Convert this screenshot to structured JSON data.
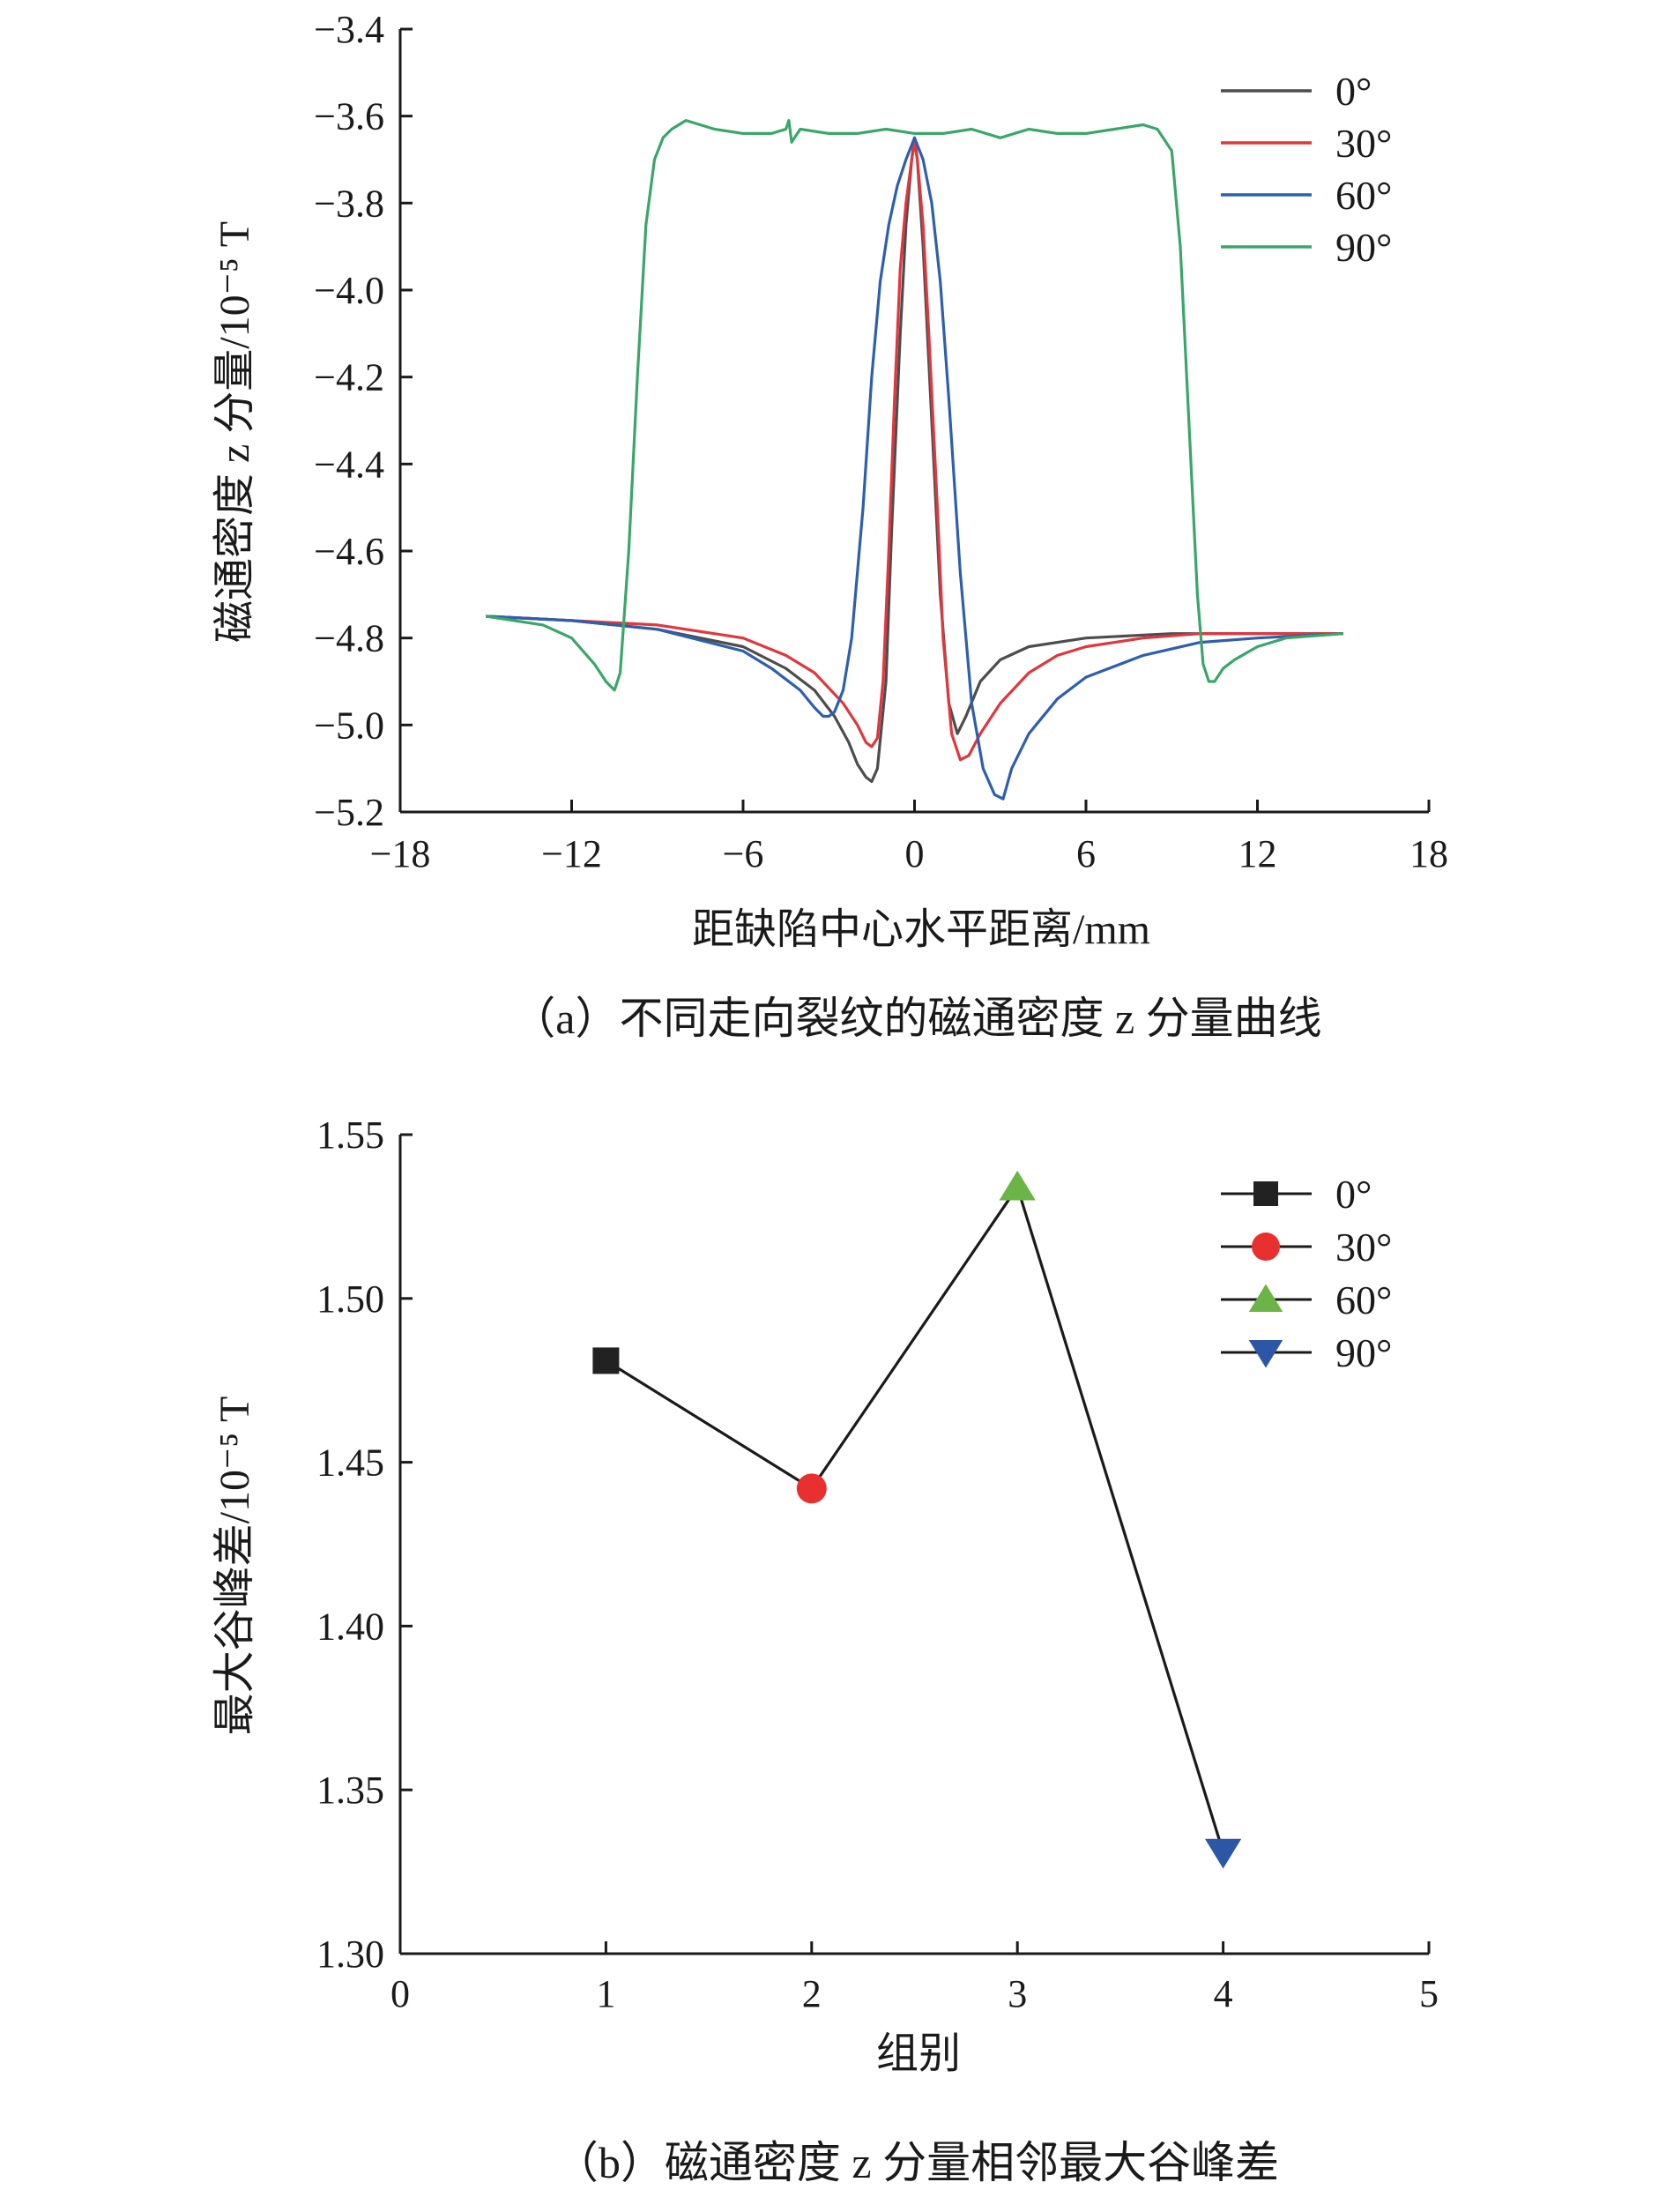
{
  "chart_data": [
    {
      "type": "line",
      "caption": "（a）不同走向裂纹的磁通密度 z 分量曲线",
      "xlabel": "距缺陷中心水平距离/mm",
      "ylabel": "磁通密度 z 分量/10⁻⁵ T",
      "xlim": [
        -18,
        18
      ],
      "ylim": [
        -5.2,
        -3.4
      ],
      "xticks": [
        "−18",
        "−12",
        "−6",
        "0",
        "6",
        "12",
        "18"
      ],
      "yticks": [
        "−3.4",
        "−3.6",
        "−3.8",
        "−4.0",
        "−4.2",
        "−4.4",
        "−4.6",
        "−4.8",
        "−5.0",
        "−5.2"
      ],
      "grid": false,
      "legend_position": "top-right",
      "series": [
        {
          "name": "0°",
          "color": "#4d4d4d",
          "x": [
            -15,
            -12,
            -9,
            -6,
            -4.5,
            -3.5,
            -2.8,
            -2.3,
            -2.0,
            -1.7,
            -1.5,
            -1.3,
            -1.0,
            -0.8,
            -0.5,
            -0.3,
            -0.1,
            0,
            0.1,
            0.3,
            0.6,
            0.9,
            1.2,
            1.5,
            1.8,
            2.3,
            3.0,
            4.0,
            6.0,
            9.0,
            12.0,
            15.0
          ],
          "y": [
            -4.75,
            -4.76,
            -4.78,
            -4.82,
            -4.87,
            -4.92,
            -4.98,
            -5.04,
            -5.09,
            -5.12,
            -5.13,
            -5.1,
            -4.9,
            -4.55,
            -4.1,
            -3.85,
            -3.7,
            -3.65,
            -3.7,
            -3.9,
            -4.3,
            -4.7,
            -4.95,
            -5.02,
            -4.98,
            -4.9,
            -4.85,
            -4.82,
            -4.8,
            -4.79,
            -4.79,
            -4.79
          ]
        },
        {
          "name": "30°",
          "color": "#e0373e",
          "x": [
            -15,
            -12,
            -9,
            -6,
            -4.5,
            -3.5,
            -2.5,
            -2.0,
            -1.7,
            -1.5,
            -1.3,
            -1.1,
            -0.9,
            -0.7,
            -0.5,
            -0.3,
            -0.1,
            0,
            0.1,
            0.3,
            0.5,
            0.8,
            1.0,
            1.3,
            1.6,
            1.9,
            2.3,
            3.0,
            4.0,
            5.0,
            6.0,
            8.0,
            10.0,
            12.0,
            15.0
          ],
          "y": [
            -4.75,
            -4.76,
            -4.77,
            -4.8,
            -4.84,
            -4.88,
            -4.95,
            -5.0,
            -5.04,
            -5.05,
            -5.03,
            -4.9,
            -4.6,
            -4.25,
            -3.95,
            -3.8,
            -3.7,
            -3.66,
            -3.7,
            -3.85,
            -4.1,
            -4.5,
            -4.8,
            -5.02,
            -5.08,
            -5.07,
            -5.02,
            -4.95,
            -4.88,
            -4.84,
            -4.82,
            -4.8,
            -4.79,
            -4.79,
            -4.79
          ]
        },
        {
          "name": "60°",
          "color": "#2e5fae",
          "x": [
            -15,
            -12,
            -9,
            -6,
            -5,
            -4,
            -3.5,
            -3.2,
            -3.0,
            -2.8,
            -2.5,
            -2.2,
            -1.8,
            -1.5,
            -1.2,
            -0.9,
            -0.6,
            -0.3,
            0,
            0.3,
            0.6,
            0.9,
            1.2,
            1.6,
            2.0,
            2.4,
            2.8,
            3.1,
            3.4,
            4.0,
            5.0,
            6.0,
            8.0,
            10.0,
            12.0,
            15.0
          ],
          "y": [
            -4.75,
            -4.76,
            -4.78,
            -4.83,
            -4.87,
            -4.92,
            -4.96,
            -4.98,
            -4.98,
            -4.97,
            -4.92,
            -4.8,
            -4.5,
            -4.2,
            -3.98,
            -3.85,
            -3.76,
            -3.7,
            -3.65,
            -3.7,
            -3.8,
            -3.98,
            -4.25,
            -4.65,
            -4.95,
            -5.1,
            -5.16,
            -5.17,
            -5.1,
            -5.02,
            -4.94,
            -4.89,
            -4.84,
            -4.81,
            -4.8,
            -4.79
          ]
        },
        {
          "name": "90°",
          "color": "#3aa66b",
          "x": [
            -15,
            -13,
            -12,
            -11.2,
            -10.8,
            -10.5,
            -10.3,
            -10.0,
            -9.7,
            -9.4,
            -9.1,
            -8.8,
            -8.5,
            -8.0,
            -7.0,
            -6.0,
            -5.0,
            -4.5,
            -4.4,
            -4.3,
            -4.0,
            -3.0,
            -2.0,
            -1.0,
            0,
            1.0,
            2.0,
            3.0,
            4.0,
            5.0,
            6.0,
            7.0,
            8.0,
            8.5,
            9.0,
            9.3,
            9.6,
            9.9,
            10.1,
            10.3,
            10.5,
            10.8,
            11.2,
            12.0,
            13.0,
            15.0
          ],
          "y": [
            -4.75,
            -4.77,
            -4.8,
            -4.86,
            -4.9,
            -4.92,
            -4.88,
            -4.6,
            -4.2,
            -3.85,
            -3.7,
            -3.65,
            -3.63,
            -3.61,
            -3.63,
            -3.64,
            -3.64,
            -3.63,
            -3.61,
            -3.66,
            -3.63,
            -3.64,
            -3.64,
            -3.63,
            -3.64,
            -3.64,
            -3.63,
            -3.65,
            -3.63,
            -3.64,
            -3.64,
            -3.63,
            -3.62,
            -3.63,
            -3.68,
            -3.9,
            -4.3,
            -4.7,
            -4.86,
            -4.9,
            -4.9,
            -4.87,
            -4.85,
            -4.82,
            -4.8,
            -4.79
          ]
        }
      ]
    },
    {
      "type": "line",
      "caption": "（b）磁通密度 z 分量相邻最大谷峰差",
      "xlabel": "组别",
      "ylabel": "最大谷峰差/10⁻⁵ T",
      "xlim": [
        0,
        5
      ],
      "ylim": [
        1.3,
        1.55
      ],
      "xticks": [
        "0",
        "1",
        "2",
        "3",
        "4",
        "5"
      ],
      "yticks": [
        "1.30",
        "1.35",
        "1.40",
        "1.45",
        "1.50",
        "1.55"
      ],
      "grid": false,
      "legend_position": "top-right",
      "x": [
        1,
        2,
        3,
        4
      ],
      "y": [
        1.481,
        1.442,
        1.534,
        1.331
      ],
      "points": [
        {
          "name": "0°",
          "x": 1,
          "y": 1.481,
          "marker": "square",
          "color": "#222222"
        },
        {
          "name": "30°",
          "x": 2,
          "y": 1.442,
          "marker": "circle",
          "color": "#e8302f"
        },
        {
          "name": "60°",
          "x": 3,
          "y": 1.534,
          "marker": "triangle-up",
          "color": "#6ab545"
        },
        {
          "name": "90°",
          "x": 4,
          "y": 1.331,
          "marker": "triangle-down",
          "color": "#2b57a6"
        }
      ],
      "line_color": "#1a1a1a"
    }
  ]
}
